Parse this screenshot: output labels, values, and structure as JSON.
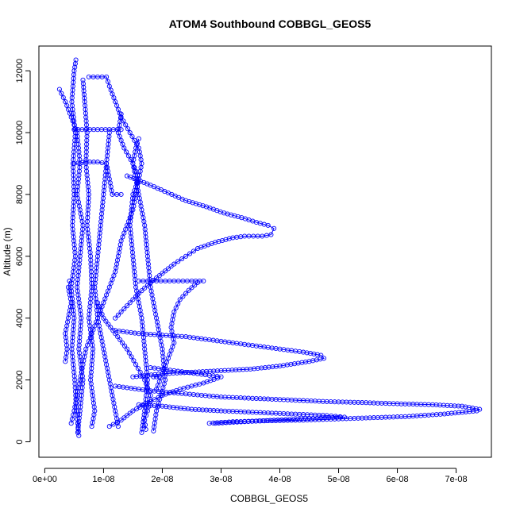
{
  "chart_data": {
    "type": "scatter",
    "title": "ATOM4 Southbound COBBGL_GEOS5",
    "xlabel": "COBBGL_GEOS5",
    "ylabel": "Altitude (m)",
    "xlim": [
      -1e-09,
      7.6e-08
    ],
    "ylim": [
      -500,
      12800
    ],
    "x_ticks": [
      0,
      1e-08,
      2e-08,
      3e-08,
      4e-08,
      5e-08,
      6e-08,
      7e-08
    ],
    "x_tick_labels": [
      "0e+00",
      "1e-08",
      "2e-08",
      "3e-08",
      "4e-08",
      "5e-08",
      "6e-08",
      "7e-08"
    ],
    "y_ticks": [
      0,
      2000,
      4000,
      6000,
      8000,
      10000,
      12000
    ],
    "y_tick_labels": [
      "0",
      "2000",
      "4000",
      "6000",
      "8000",
      "10000",
      "12000"
    ],
    "marker": "open-circle",
    "connect_points": true,
    "grid": false,
    "colors": {
      "series": "#0000ff",
      "axis": "#000000"
    },
    "series": [
      {
        "points": [
          [
            5.3e-09,
            12350
          ],
          [
            5e-09,
            12000
          ],
          [
            4.6e-09,
            11000
          ],
          [
            5.2e-09,
            10000
          ],
          [
            4.8e-09,
            9000
          ],
          [
            5e-09,
            8000
          ],
          [
            4.7e-09,
            7000
          ],
          [
            5.2e-09,
            6000
          ],
          [
            4.5e-09,
            5000
          ],
          [
            5e-09,
            4000
          ],
          [
            4.6e-09,
            3000
          ],
          [
            5.1e-09,
            2000
          ],
          [
            5.4e-09,
            1000
          ],
          [
            5.8e-09,
            200
          ]
        ]
      },
      {
        "points": [
          [
            2.5e-09,
            11400
          ],
          [
            3.5e-09,
            11000
          ],
          [
            4.5e-09,
            10500
          ],
          [
            5.5e-09,
            10000
          ],
          [
            6e-09,
            9000
          ],
          [
            5.5e-09,
            8000
          ],
          [
            6.5e-09,
            7000
          ],
          [
            6e-09,
            6000
          ],
          [
            5.5e-09,
            5000
          ],
          [
            6.2e-09,
            4000
          ],
          [
            5.8e-09,
            3000
          ],
          [
            6.5e-09,
            2000
          ],
          [
            6e-09,
            1000
          ],
          [
            5.6e-09,
            300
          ]
        ]
      },
      {
        "points": [
          [
            7.5e-09,
            11800
          ],
          [
            9e-09,
            11800
          ],
          [
            1.05e-08,
            11800
          ],
          [
            1.1e-08,
            11500
          ],
          [
            1.2e-08,
            11000
          ],
          [
            1.3e-08,
            10500
          ],
          [
            1.45e-08,
            10000
          ],
          [
            1.6e-08,
            9500
          ],
          [
            1.65e-08,
            9000
          ],
          [
            1.6e-08,
            8500
          ],
          [
            1.55e-08,
            8000
          ],
          [
            1.5e-08,
            7500
          ],
          [
            1.4e-08,
            7000
          ],
          [
            1.3e-08,
            6500
          ],
          [
            1.25e-08,
            6000
          ],
          [
            1.2e-08,
            5500
          ],
          [
            1.1e-08,
            5000
          ],
          [
            1e-08,
            4500
          ],
          [
            9e-09,
            4000
          ],
          [
            8e-09,
            3500
          ],
          [
            7e-09,
            3000
          ],
          [
            6.5e-09,
            2500
          ],
          [
            6e-09,
            2000
          ],
          [
            5.5e-09,
            1500
          ],
          [
            5e-09,
            1000
          ],
          [
            4.5e-09,
            600
          ]
        ]
      },
      {
        "points": [
          [
            1.3e-08,
            10600
          ],
          [
            1.25e-08,
            10000
          ],
          [
            1.35e-08,
            9500
          ],
          [
            1.5e-08,
            9000
          ],
          [
            1.6e-08,
            8500
          ],
          [
            1.5e-08,
            8000
          ],
          [
            1.45e-08,
            7000
          ],
          [
            1.5e-08,
            6000
          ],
          [
            1.55e-08,
            5000
          ],
          [
            1.65e-08,
            4000
          ],
          [
            1.7e-08,
            3000
          ],
          [
            1.75e-08,
            2000
          ],
          [
            1.7e-08,
            1000
          ],
          [
            1.65e-08,
            300
          ]
        ]
      },
      {
        "points": [
          [
            1.6e-08,
            9800
          ],
          [
            1.55e-08,
            9500
          ],
          [
            1.5e-08,
            9000
          ],
          [
            1.6e-08,
            8000
          ],
          [
            1.7e-08,
            7000
          ],
          [
            1.75e-08,
            6000
          ],
          [
            1.8e-08,
            5000
          ],
          [
            1.9e-08,
            4000
          ],
          [
            2e-08,
            3000
          ],
          [
            2.05e-08,
            2000
          ],
          [
            1.9e-08,
            1000
          ],
          [
            1.85e-08,
            350
          ]
        ]
      },
      {
        "points": [
          [
            5e-09,
            10100
          ],
          [
            7e-09,
            10100
          ],
          [
            9e-09,
            10100
          ],
          [
            1.1e-08,
            10100
          ],
          [
            1.3e-08,
            10100
          ]
        ]
      },
      {
        "points": [
          [
            5e-09,
            9000
          ],
          [
            7e-09,
            9050
          ],
          [
            9e-09,
            9050
          ],
          [
            1.05e-08,
            9000
          ],
          [
            1.1e-08,
            8500
          ],
          [
            1.15e-08,
            8000
          ],
          [
            1.3e-08,
            8000
          ]
        ]
      },
      {
        "points": [
          [
            1.1e-08,
            10000
          ],
          [
            1.05e-08,
            9000
          ],
          [
            1e-08,
            8000
          ],
          [
            9.5e-09,
            7000
          ],
          [
            9e-09,
            6000
          ],
          [
            8.5e-09,
            5000
          ],
          [
            9e-09,
            4000
          ],
          [
            1e-08,
            3000
          ],
          [
            1.1e-08,
            2000
          ],
          [
            1.2e-08,
            1000
          ],
          [
            1.25e-08,
            500
          ]
        ]
      },
      {
        "points": [
          [
            6.5e-09,
            11700
          ],
          [
            6.8e-09,
            11000
          ],
          [
            7.2e-09,
            10000
          ],
          [
            7e-09,
            9000
          ],
          [
            7.5e-09,
            8000
          ],
          [
            7.2e-09,
            7000
          ],
          [
            7.8e-09,
            6000
          ],
          [
            8e-09,
            5000
          ],
          [
            7.5e-09,
            4000
          ],
          [
            8.2e-09,
            3000
          ],
          [
            7.8e-09,
            2000
          ],
          [
            8.5e-09,
            1000
          ],
          [
            8e-09,
            500
          ]
        ]
      },
      {
        "points": [
          [
            1.4e-08,
            8600
          ],
          [
            1.8e-08,
            8300
          ],
          [
            2.1e-08,
            8050
          ],
          [
            2.4e-08,
            7800
          ],
          [
            2.75e-08,
            7600
          ],
          [
            3.05e-08,
            7400
          ],
          [
            3.35e-08,
            7250
          ],
          [
            3.6e-08,
            7100
          ],
          [
            3.8e-08,
            7000
          ],
          [
            3.9e-08,
            6900
          ],
          [
            3.85e-08,
            6700
          ],
          [
            3.7e-08,
            6650
          ],
          [
            3.4e-08,
            6650
          ],
          [
            3.2e-08,
            6600
          ],
          [
            2.9e-08,
            6450
          ],
          [
            2.6e-08,
            6250
          ],
          [
            2.4e-08,
            6000
          ],
          [
            2.2e-08,
            5750
          ],
          [
            2e-08,
            5450
          ],
          [
            1.8e-08,
            5150
          ],
          [
            1.6e-08,
            4800
          ],
          [
            1.4e-08,
            4400
          ],
          [
            1.2e-08,
            4000
          ]
        ]
      },
      {
        "points": [
          [
            1.6e-08,
            5200
          ],
          [
            1.9e-08,
            5200
          ],
          [
            2.2e-08,
            5200
          ],
          [
            2.5e-08,
            5200
          ],
          [
            2.7e-08,
            5200
          ]
        ]
      },
      {
        "points": [
          [
            2.6e-08,
            5150
          ],
          [
            2.45e-08,
            4900
          ],
          [
            2.3e-08,
            4600
          ],
          [
            2.2e-08,
            4200
          ],
          [
            2.15e-08,
            3700
          ],
          [
            2.2e-08,
            3200
          ],
          [
            2.1e-08,
            2700
          ],
          [
            2e-08,
            2200
          ],
          [
            1.9e-08,
            1700
          ]
        ]
      },
      {
        "points": [
          [
            1.2e-08,
            3600
          ],
          [
            1.6e-08,
            3500
          ],
          [
            2e-08,
            3450
          ],
          [
            2.4e-08,
            3400
          ],
          [
            2.8e-08,
            3300
          ],
          [
            3.2e-08,
            3200
          ],
          [
            3.6e-08,
            3100
          ],
          [
            4e-08,
            3000
          ],
          [
            4.4e-08,
            2900
          ],
          [
            4.7e-08,
            2800
          ],
          [
            4.75e-08,
            2700
          ],
          [
            4.5e-08,
            2600
          ],
          [
            4e-08,
            2450
          ],
          [
            3.5e-08,
            2350
          ],
          [
            3e-08,
            2300
          ],
          [
            2.5e-08,
            2250
          ],
          [
            2e-08,
            2200
          ],
          [
            1.5e-08,
            2100
          ]
        ]
      },
      {
        "points": [
          [
            1.2e-08,
            1800
          ],
          [
            1.8e-08,
            1650
          ],
          [
            2.4e-08,
            1550
          ],
          [
            3e-08,
            1450
          ],
          [
            3.6e-08,
            1400
          ],
          [
            4.2e-08,
            1350
          ],
          [
            4.8e-08,
            1300
          ],
          [
            5.4e-08,
            1270
          ],
          [
            6e-08,
            1230
          ],
          [
            6.6e-08,
            1200
          ],
          [
            7.1e-08,
            1150
          ],
          [
            7.4e-08,
            1050
          ],
          [
            7.35e-08,
            1000
          ],
          [
            6.8e-08,
            900
          ],
          [
            6.2e-08,
            820
          ],
          [
            5.6e-08,
            780
          ],
          [
            5e-08,
            740
          ],
          [
            4.4e-08,
            700
          ],
          [
            3.8e-08,
            680
          ],
          [
            3.2e-08,
            650
          ],
          [
            2.8e-08,
            600
          ]
        ]
      },
      {
        "points": [
          [
            1.6e-08,
            1200
          ],
          [
            2e-08,
            1150
          ],
          [
            2.5e-08,
            1050
          ],
          [
            3e-08,
            1000
          ],
          [
            3.6e-08,
            950
          ],
          [
            4.2e-08,
            900
          ],
          [
            4.8e-08,
            850
          ],
          [
            5.1e-08,
            800
          ],
          [
            4.5e-08,
            750
          ],
          [
            3.9e-08,
            700
          ],
          [
            3.4e-08,
            650
          ],
          [
            2.9e-08,
            600
          ]
        ]
      },
      {
        "points": [
          [
            1.8e-08,
            2400
          ],
          [
            2.2e-08,
            2300
          ],
          [
            2.6e-08,
            2200
          ],
          [
            3e-08,
            2100
          ],
          [
            2.7e-08,
            1900
          ],
          [
            2.3e-08,
            1700
          ],
          [
            2e-08,
            1500
          ],
          [
            1.8e-08,
            1300
          ],
          [
            1.5e-08,
            1000
          ],
          [
            1.3e-08,
            700
          ],
          [
            1.1e-08,
            500
          ]
        ]
      },
      {
        "points": [
          [
            9e-09,
            4500
          ],
          [
            1e-08,
            4000
          ],
          [
            1.2e-08,
            3500
          ],
          [
            1.4e-08,
            3000
          ],
          [
            1.55e-08,
            2500
          ],
          [
            1.7e-08,
            2000
          ],
          [
            1.8e-08,
            1500
          ],
          [
            1.75e-08,
            1000
          ],
          [
            1.7e-08,
            700
          ],
          [
            1.72e-08,
            400
          ]
        ]
      },
      {
        "points": [
          [
            1.85e-08,
            2100
          ],
          [
            1.9e-08,
            2100
          ],
          [
            1.95e-08,
            2100
          ]
        ]
      },
      {
        "points": [
          [
            3.5e-09,
            2600
          ],
          [
            3.8e-09,
            3000
          ],
          [
            3.5e-09,
            3500
          ],
          [
            4e-09,
            4000
          ],
          [
            4.5e-09,
            4500
          ],
          [
            4e-09,
            5000
          ],
          [
            4.2e-09,
            5200
          ]
        ]
      }
    ]
  }
}
